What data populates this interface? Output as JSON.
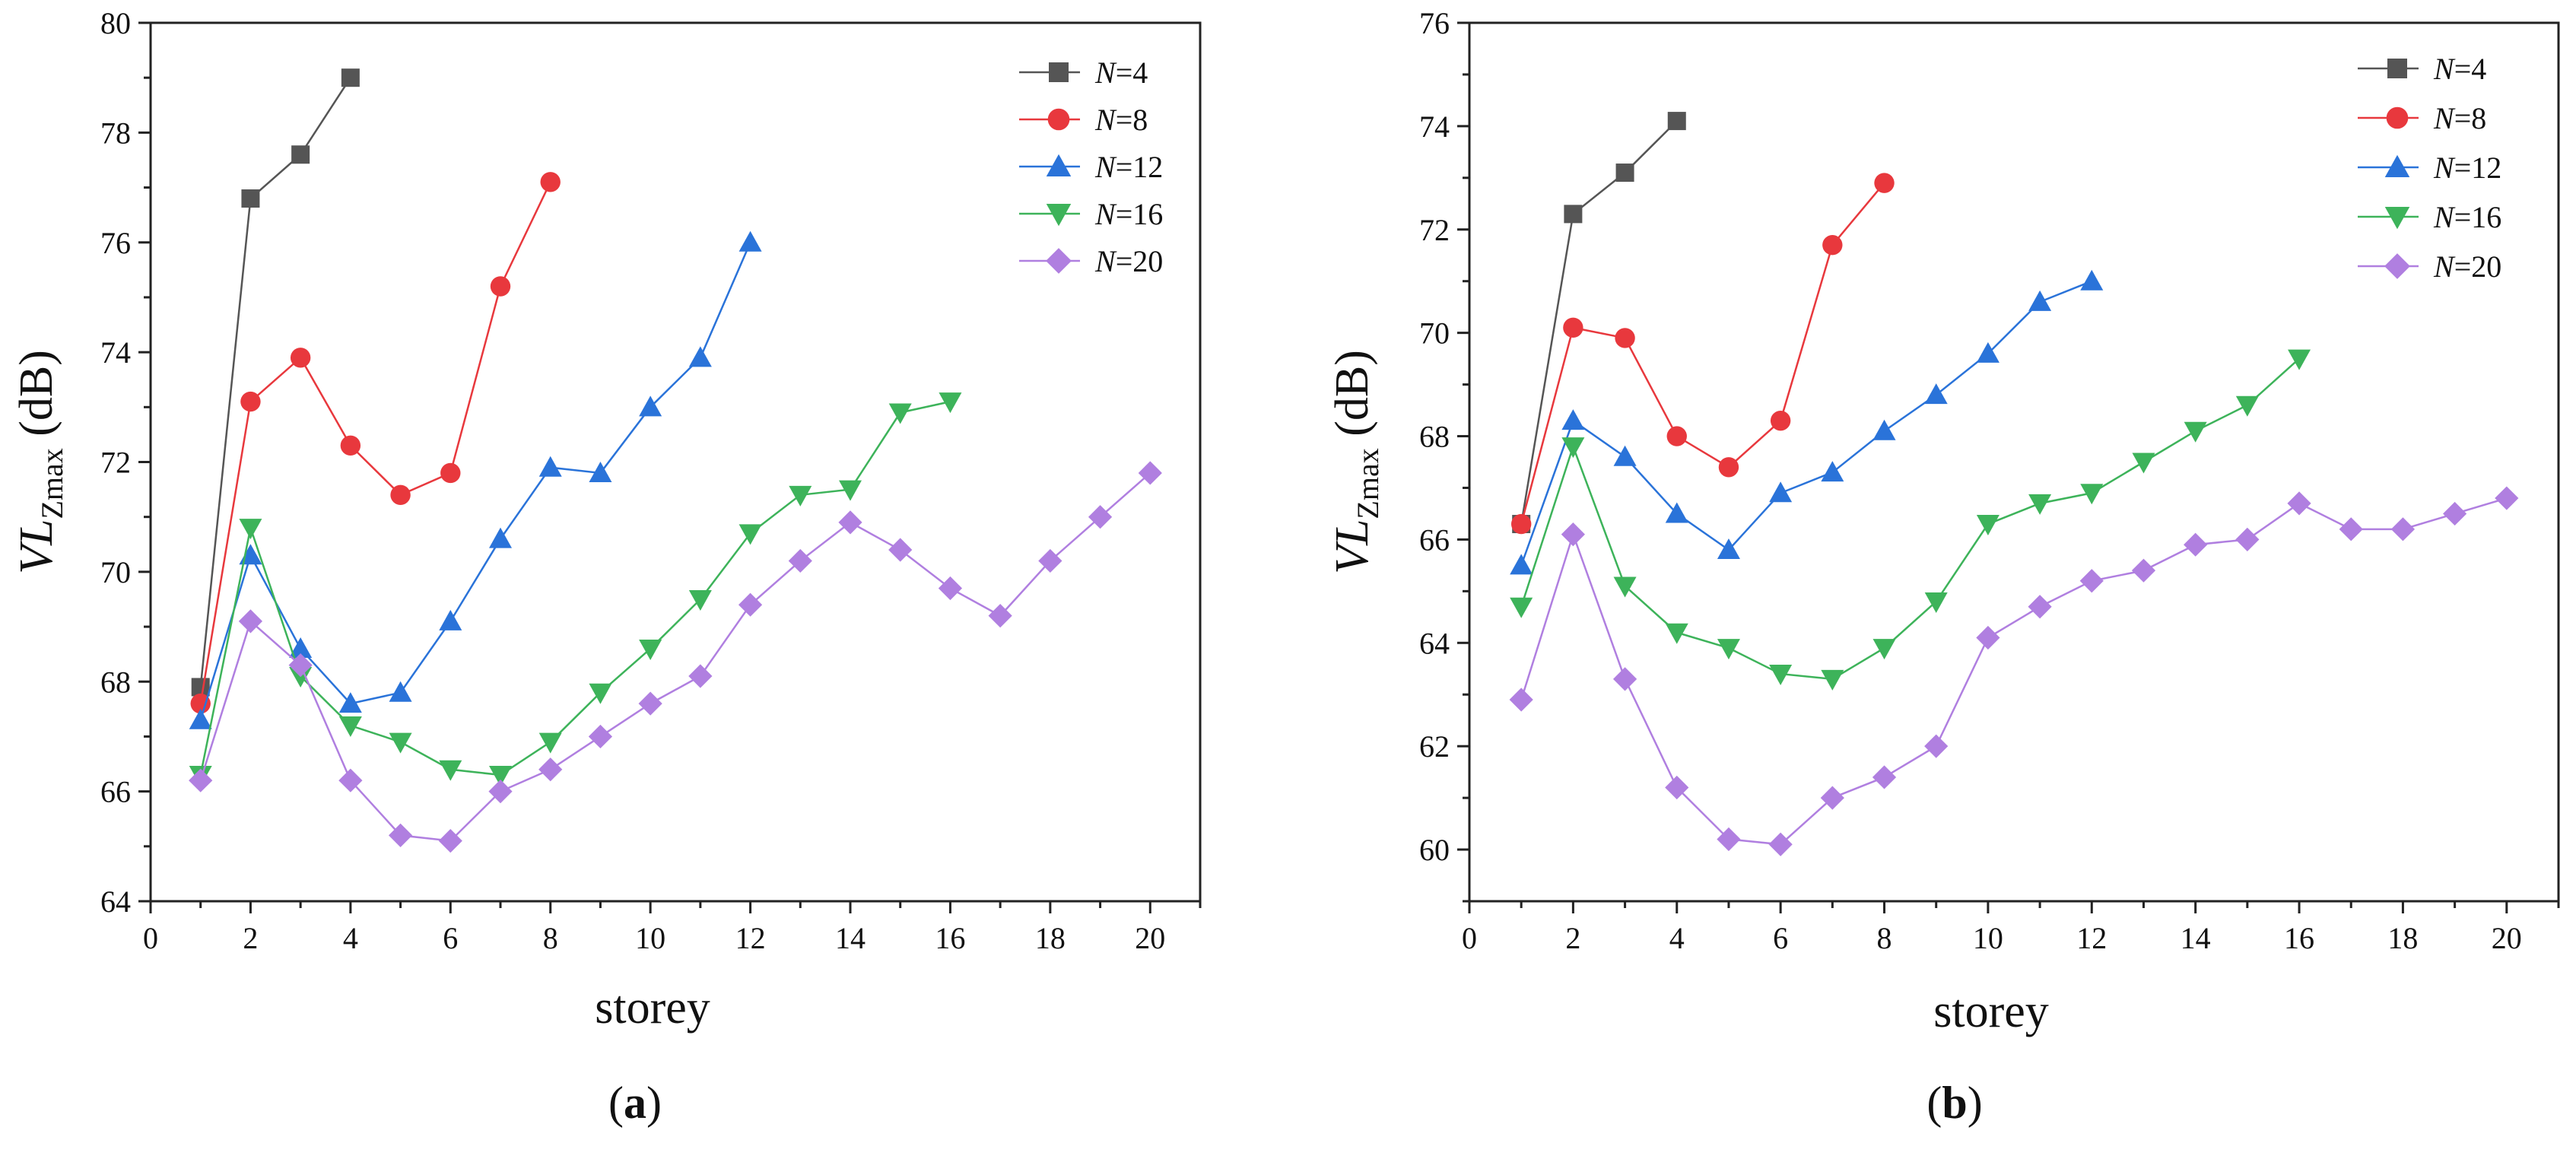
{
  "chart_data": [
    {
      "type": "line",
      "panel_label": "a",
      "xlabel": "storey",
      "ylabel": {
        "base": "VL",
        "sub": "Zmax",
        "unit": "(dB)"
      },
      "xlim": [
        0,
        21
      ],
      "ylim": [
        64,
        80
      ],
      "xticks": [
        0,
        2,
        4,
        6,
        8,
        10,
        12,
        14,
        16,
        18,
        20
      ],
      "yticks": [
        64,
        66,
        68,
        70,
        72,
        74,
        76,
        78,
        80
      ],
      "grid": false,
      "legend_position": "top-right",
      "series": [
        {
          "name": "N=4",
          "N": "4",
          "color": "#555555",
          "marker": "square",
          "x": [
            1,
            2,
            3,
            4
          ],
          "y": [
            67.9,
            76.8,
            77.6,
            79.0
          ]
        },
        {
          "name": "N=8",
          "N": "8",
          "color": "#e8383d",
          "marker": "circle",
          "x": [
            1,
            2,
            3,
            4,
            5,
            6,
            7,
            8
          ],
          "y": [
            67.6,
            73.1,
            73.9,
            72.3,
            71.4,
            71.8,
            75.2,
            77.1
          ]
        },
        {
          "name": "N=12",
          "N": "12",
          "color": "#2a73d9",
          "marker": "triangle-up",
          "x": [
            1,
            2,
            3,
            4,
            5,
            6,
            7,
            8,
            9,
            10,
            11,
            12
          ],
          "y": [
            67.3,
            70.3,
            68.6,
            67.6,
            67.8,
            69.1,
            70.6,
            71.9,
            71.8,
            73.0,
            73.9,
            76.0
          ]
        },
        {
          "name": "N=16",
          "N": "16",
          "color": "#3db35a",
          "marker": "triangle-down",
          "x": [
            1,
            2,
            3,
            4,
            5,
            6,
            7,
            8,
            9,
            10,
            11,
            12,
            13,
            14,
            15,
            16
          ],
          "y": [
            66.3,
            70.8,
            68.1,
            67.2,
            66.9,
            66.4,
            66.3,
            66.9,
            67.8,
            68.6,
            69.5,
            70.7,
            71.4,
            71.5,
            72.9,
            73.1
          ]
        },
        {
          "name": "N=20",
          "N": "20",
          "color": "#b07fe0",
          "marker": "diamond",
          "x": [
            1,
            2,
            3,
            4,
            5,
            6,
            7,
            8,
            9,
            10,
            11,
            12,
            13,
            14,
            15,
            16,
            17,
            18,
            19,
            20
          ],
          "y": [
            66.2,
            69.1,
            68.3,
            66.2,
            65.2,
            65.1,
            66.0,
            66.4,
            67.0,
            67.6,
            68.1,
            69.4,
            70.2,
            70.9,
            70.4,
            69.7,
            69.2,
            70.2,
            71.0,
            71.8
          ]
        }
      ]
    },
    {
      "type": "line",
      "panel_label": "b",
      "xlabel": "storey",
      "ylabel": {
        "base": "VL",
        "sub": "Zmax",
        "unit": "(dB)"
      },
      "xlim": [
        0,
        21
      ],
      "ylim": [
        59,
        76
      ],
      "xticks": [
        0,
        2,
        4,
        6,
        8,
        10,
        12,
        14,
        16,
        18,
        20
      ],
      "yticks": [
        60,
        62,
        64,
        66,
        68,
        70,
        72,
        74,
        76
      ],
      "grid": false,
      "legend_position": "top-right",
      "series": [
        {
          "name": "N=4",
          "N": "4",
          "color": "#555555",
          "marker": "square",
          "x": [
            1,
            2,
            3,
            4
          ],
          "y": [
            66.3,
            72.3,
            73.1,
            74.1
          ]
        },
        {
          "name": "N=8",
          "N": "8",
          "color": "#e8383d",
          "marker": "circle",
          "x": [
            1,
            2,
            3,
            4,
            5,
            6,
            7,
            8
          ],
          "y": [
            66.3,
            70.1,
            69.9,
            68.0,
            67.4,
            68.3,
            71.7,
            72.9
          ]
        },
        {
          "name": "N=12",
          "N": "12",
          "color": "#2a73d9",
          "marker": "triangle-up",
          "x": [
            1,
            2,
            3,
            4,
            5,
            6,
            7,
            8,
            9,
            10,
            11,
            12
          ],
          "y": [
            65.5,
            68.3,
            67.6,
            66.5,
            65.8,
            66.9,
            67.3,
            68.1,
            68.8,
            69.6,
            70.6,
            71.0
          ]
        },
        {
          "name": "N=16",
          "N": "16",
          "color": "#3db35a",
          "marker": "triangle-down",
          "x": [
            1,
            2,
            3,
            4,
            5,
            6,
            7,
            8,
            9,
            10,
            11,
            12,
            13,
            14,
            15,
            16
          ],
          "y": [
            64.7,
            67.8,
            65.1,
            64.2,
            63.9,
            63.4,
            63.3,
            63.9,
            64.8,
            66.3,
            66.7,
            66.9,
            67.5,
            68.1,
            68.6,
            69.5
          ]
        },
        {
          "name": "N=20",
          "N": "20",
          "color": "#b07fe0",
          "marker": "diamond",
          "x": [
            1,
            2,
            3,
            4,
            5,
            6,
            7,
            8,
            9,
            10,
            11,
            12,
            13,
            14,
            15,
            16,
            17,
            18,
            19,
            20
          ],
          "y": [
            62.9,
            66.1,
            63.3,
            61.2,
            60.2,
            60.1,
            61.0,
            61.4,
            62.0,
            64.1,
            64.7,
            65.2,
            65.4,
            65.9,
            66.0,
            66.7,
            66.2,
            66.2,
            66.5,
            66.8
          ]
        }
      ]
    }
  ]
}
